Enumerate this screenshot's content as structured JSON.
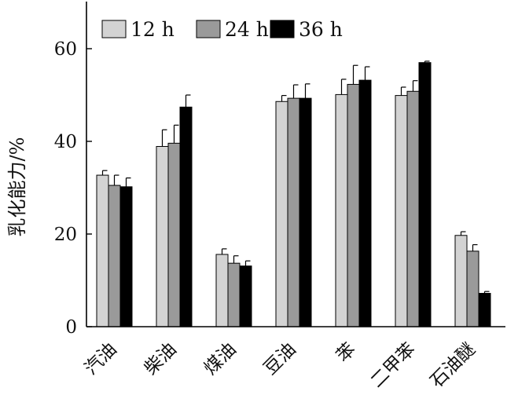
{
  "chart_data": {
    "type": "bar",
    "title": "",
    "xlabel": "",
    "ylabel": "乳化能力/%",
    "ylim": [
      0,
      70
    ],
    "yticks": [
      0,
      20,
      40,
      60
    ],
    "grid": false,
    "legend_position": "top-left",
    "categories": [
      "汽油",
      "柴油",
      "煤油",
      "豆油",
      "苯",
      "二甲苯",
      "石油醚"
    ],
    "series": [
      {
        "name": "12 h",
        "color": "#d3d3d3",
        "values": [
          32.7,
          38.9,
          15.6,
          48.6,
          50.1,
          49.9,
          19.7
        ],
        "errors": [
          1.0,
          3.6,
          1.2,
          1.3,
          3.3,
          1.8,
          0.8
        ]
      },
      {
        "name": "24 h",
        "color": "#9a9a9a",
        "values": [
          30.5,
          39.6,
          13.7,
          49.3,
          52.3,
          50.8,
          16.3
        ],
        "errors": [
          2.2,
          3.9,
          1.6,
          2.9,
          4.1,
          2.3,
          1.4
        ]
      },
      {
        "name": "36 h",
        "color": "#000000",
        "values": [
          30.2,
          47.4,
          13.1,
          49.3,
          53.2,
          57.0,
          7.2
        ],
        "errors": [
          1.9,
          2.6,
          1.1,
          3.1,
          2.9,
          0.3,
          0.4
        ]
      }
    ]
  }
}
